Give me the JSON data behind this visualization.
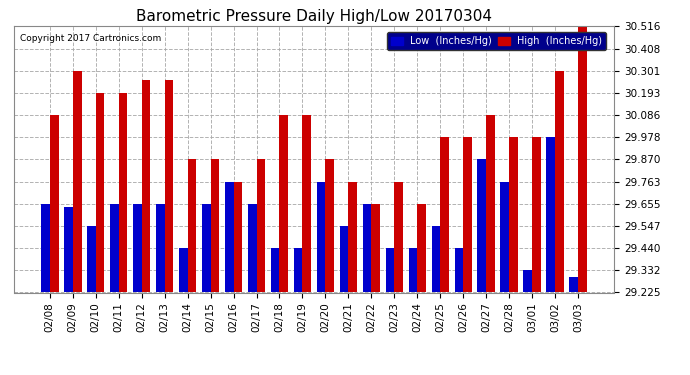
{
  "title": "Barometric Pressure Daily High/Low 20170304",
  "copyright": "Copyright 2017 Cartronics.com",
  "background_color": "#ffffff",
  "plot_background": "#ffffff",
  "grid_color": "#aaaaaa",
  "title_fontsize": 11,
  "categories": [
    "02/08",
    "02/09",
    "02/10",
    "02/11",
    "02/12",
    "02/13",
    "02/14",
    "02/15",
    "02/16",
    "02/17",
    "02/18",
    "02/19",
    "02/20",
    "02/21",
    "02/22",
    "02/23",
    "02/24",
    "02/25",
    "02/26",
    "02/27",
    "02/28",
    "03/01",
    "03/02",
    "03/03"
  ],
  "low_values": [
    29.655,
    29.64,
    29.547,
    29.655,
    29.655,
    29.655,
    29.44,
    29.655,
    29.763,
    29.655,
    29.44,
    29.44,
    29.763,
    29.547,
    29.655,
    29.44,
    29.44,
    29.547,
    29.44,
    29.87,
    29.763,
    29.332,
    29.978,
    29.301
  ],
  "high_values": [
    30.086,
    30.301,
    30.193,
    30.193,
    30.255,
    30.255,
    29.87,
    29.87,
    29.763,
    29.87,
    30.086,
    30.086,
    29.87,
    29.763,
    29.655,
    29.763,
    29.655,
    29.978,
    29.978,
    30.086,
    29.978,
    29.978,
    30.301,
    30.516
  ],
  "low_color": "#0000cc",
  "high_color": "#cc0000",
  "ylim_min": 29.225,
  "ylim_max": 30.516,
  "yticks": [
    29.225,
    29.332,
    29.44,
    29.547,
    29.655,
    29.763,
    29.87,
    29.978,
    30.086,
    30.193,
    30.301,
    30.408,
    30.516
  ],
  "legend_low_label": "Low  (Inches/Hg)",
  "legend_high_label": "High  (Inches/Hg)",
  "bar_width": 0.38
}
